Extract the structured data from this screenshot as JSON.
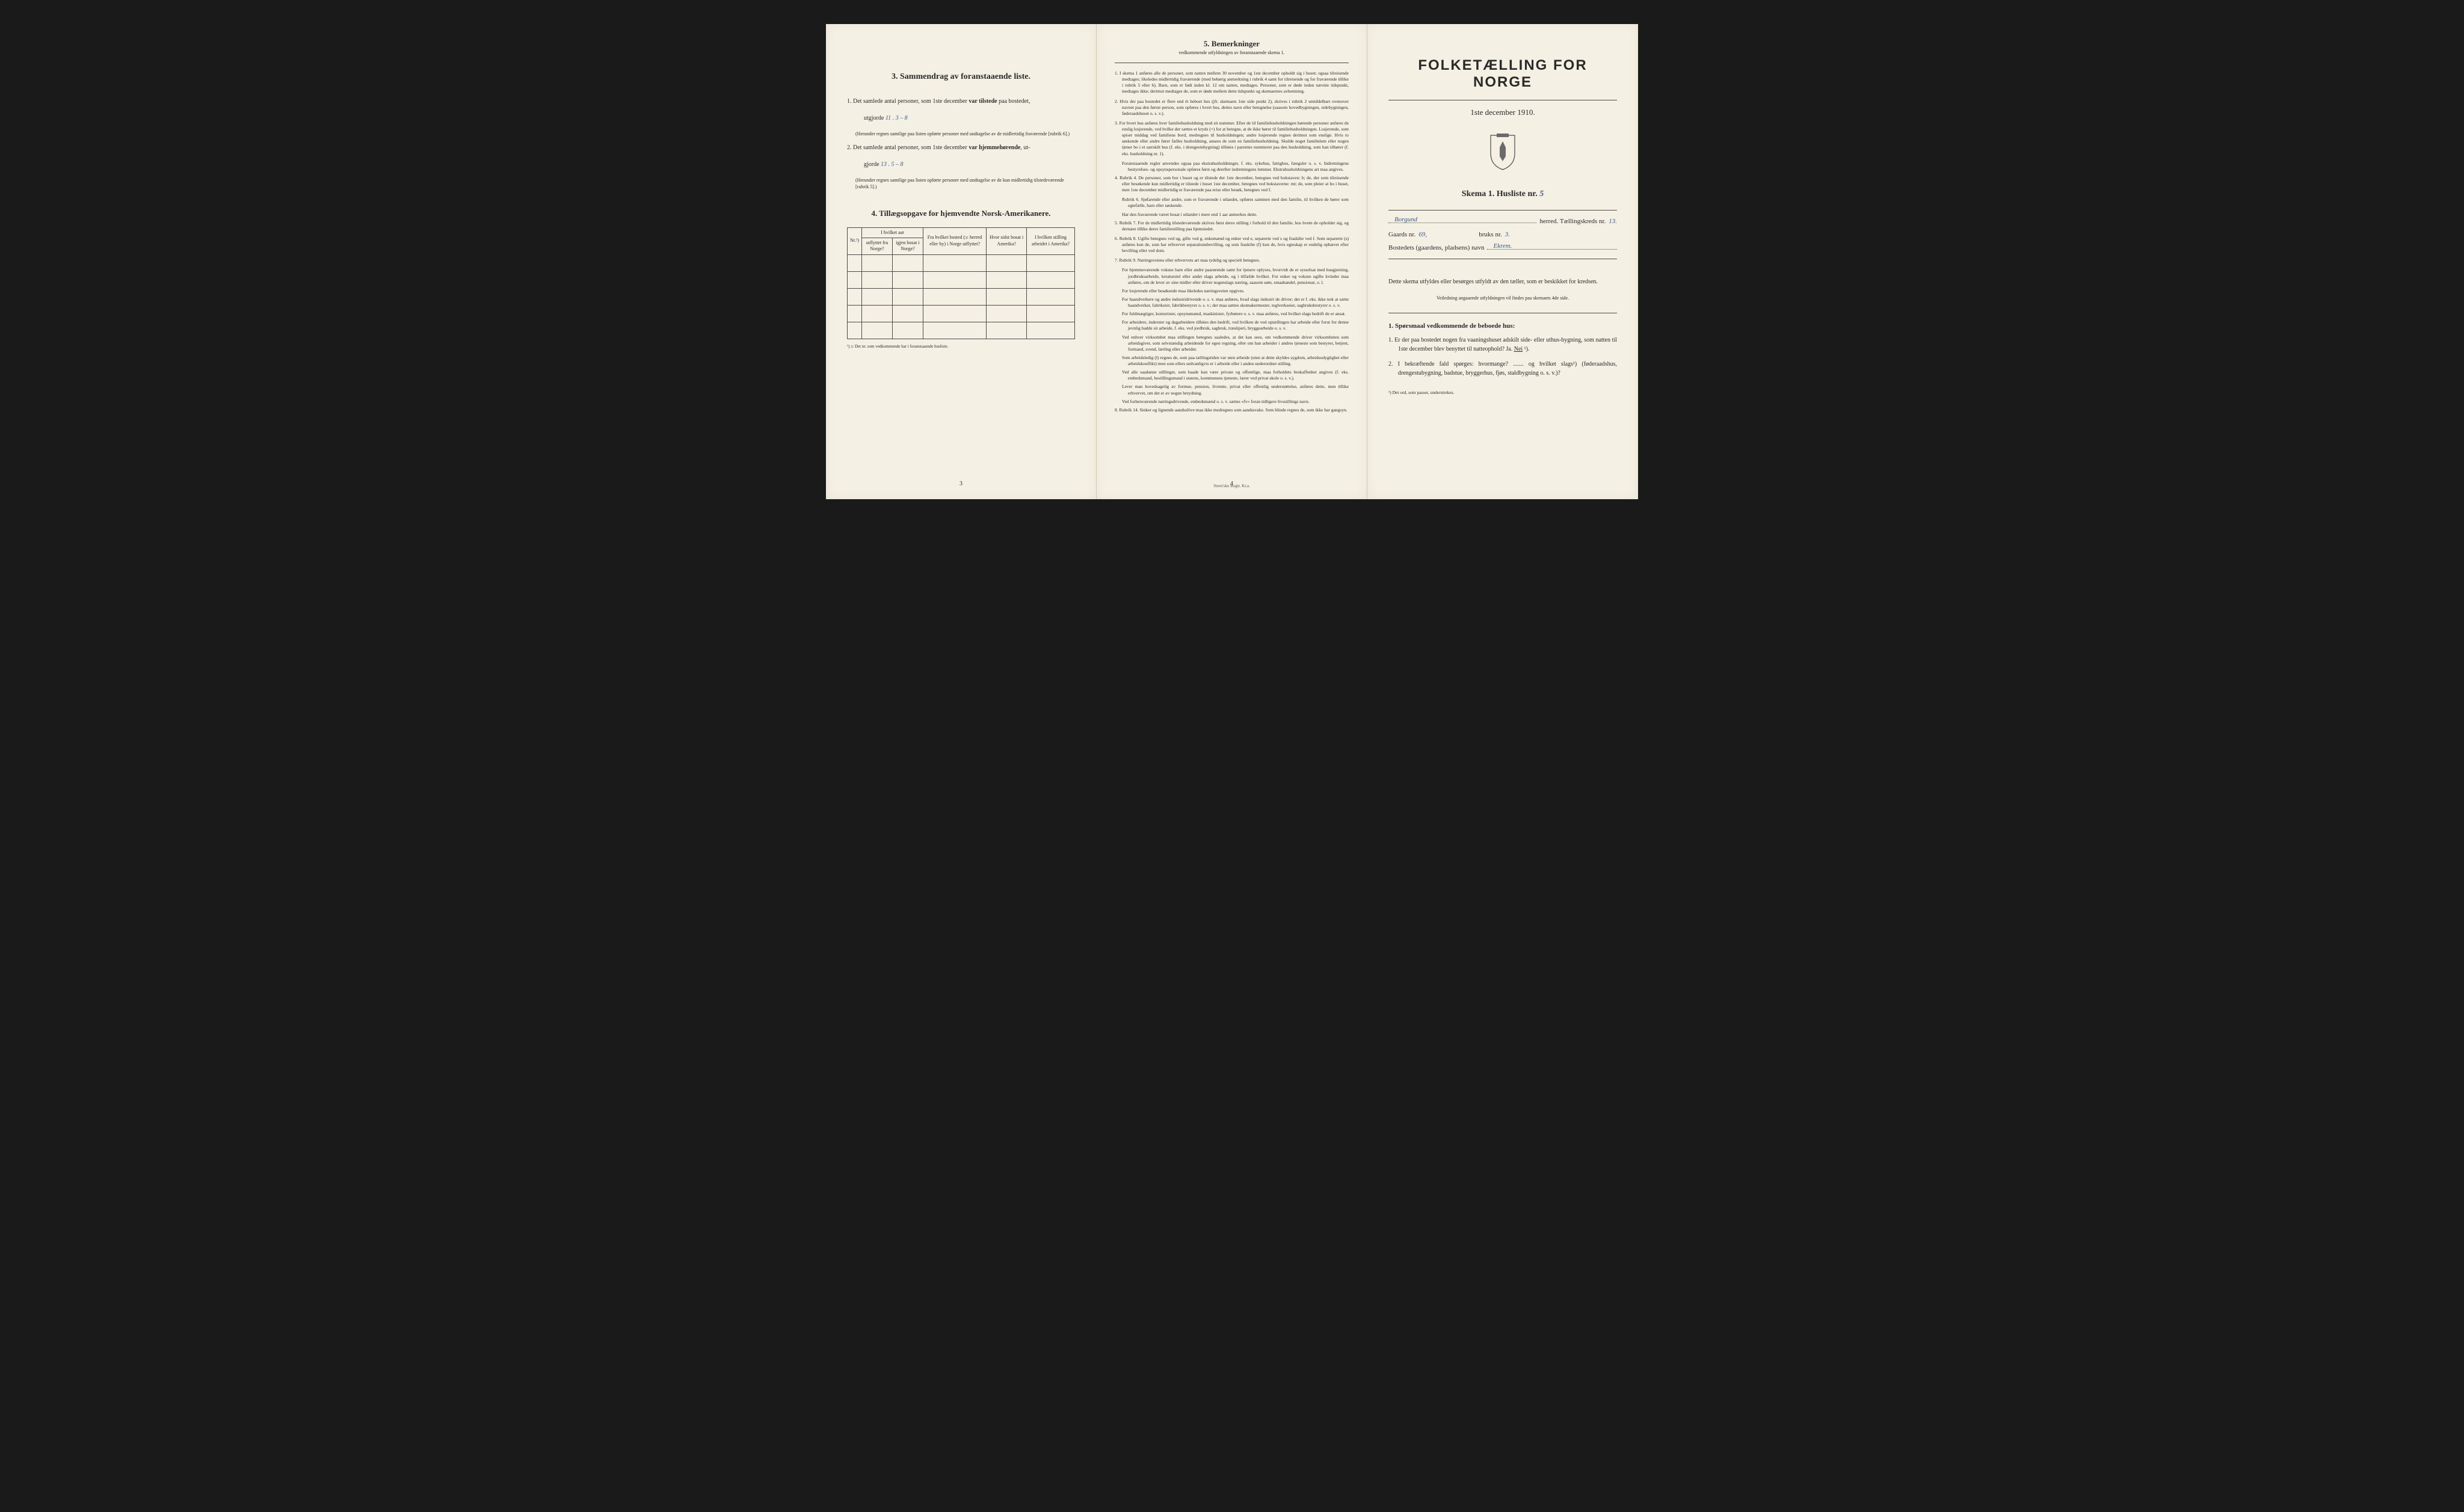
{
  "background_color": "#1a1a1a",
  "page_color": "#f5f0e4",
  "text_color": "#2a2a2a",
  "handwriting_color": "#3a5a8a",
  "left": {
    "section3_title": "3.  Sammendrag av foranstaaende liste.",
    "item1_prefix": "1.  Det samlede antal personer, som 1ste december ",
    "item1_bold": "var tilstede",
    "item1_suffix": " paa bostedet,",
    "item1_line2": "utgjorde ",
    "item1_hw": "11 .   3 – 8",
    "item1_note": "(Herunder regnes samtlige paa listen opførte personer med undtagelse av de midlertidig fraværende [rubrik 6].)",
    "item2_prefix": "2.  Det samlede antal personer, som 1ste december ",
    "item2_bold": "var hjemmehørende",
    "item2_suffix": ", ut-",
    "item2_line2": "gjorde ",
    "item2_hw": "13 .    5 – 8",
    "item2_note": "(Herunder regnes samtlige paa listen opførte personer med undtagelse av de kun midlertidig tilstedeværende [rubrik 5].)",
    "section4_title": "4.  Tillægsopgave for hjemvendte Norsk-Amerikanere.",
    "table": {
      "headers": {
        "col1": "Nr.¹)",
        "col2_top": "I hvilket aar",
        "col2a": "utflyttet fra Norge?",
        "col2b": "igjen bosat i Norge?",
        "col3": "Fra hvilket bosted (ɔ: herred eller by) i Norge utflyttet?",
        "col4": "Hvor sidst bosat i Amerika?",
        "col5": "I hvilken stilling arbeidet i Amerika?"
      },
      "empty_rows": 5
    },
    "table_footnote": "¹) ɔ: Det nr. som vedkommende har i foranstaaende husliste.",
    "page_num": "3"
  },
  "middle": {
    "title": "5.  Bemerkninger",
    "subtitle": "vedkommende utfyldningen av foranstaaende skema 1.",
    "items": [
      "1.  I skema 1 anføres alle de personer, som natten mellem 30 november og 1ste december opholdt sig i huset; ogsaa tilreisende medtages; likeledes midlertidig fraværende (med behørig anmerkning i rubrik 4 samt for tilreisende og for fraværende tillike i rubrik 5 eller 6). Barn, som er født inden kl. 12 om natten, medtages. Personer, som er døde inden nævnte tidspunkt, medtages ikke; derimot medtages de, som er døde mellem dette tidspunkt og skemaernes avhentning.",
      "2.  Hvis der paa bostedet er flere end ét beboet hus (jfr. skemaets 1ste side punkt 2), skrives i rubrik 2 umiddelbart ovenover navnet paa den første person, som opføres i hvert hus, dettes navn eller betegnelse (saasom hovedbygningen, sidebygningen, føderaadshuset o. s. v.).",
      "3.  For hvert hus anføres hver familiehusholdning med sit nummer. Efter de til familiehusholdningen hørende personer anføres de enslig losjerende, ved hvilke der sættes et kryds (×) for at betegne, at de ikke hører til familiehusholdningen. Losjerende, som spiser middag ved familiens bord, medregnes til husholdningen; andre losjerende regnes derimot som enslige. Hvis to søskende eller andre fører fælles husholdning, ansees de som en familiehusholdning. Skulde noget familielem eller nogen tjener bo i et særskilt hus (f. eks. i drengestubygning) tilføies i parentes nummeret paa den husholdning, som han tilhører (f. eks. husholdning nr. 1).",
      "   Foranstaaende regler anvendes ogsaa paa ekstrahusholdninger, f. eks. sykehus, fattighus, fængsler o. s. v. Indretningens bestyrelses- og opsynspersonale opføres først og derefter indretningens lemmer. Ekstrahusholdningens art maa angives.",
      "4.  Rubrik 4. De personer, som bor i huset og er tilstede der 1ste december, betegnes ved bokstaven: b; de, der som tilreisende eller besøkende kun midlertidig er tilstede i huset 1ste december, betegnes ved bokstaverne: mt; de, som pleier at bo i huset, men 1ste december midlertidig er fraværende paa reise eller besøk, betegnes ved f.",
      "   Rubrik 6. Sjøfarende eller andre, som er fraværende i utlandet, opføres sammen med den familie, til hvilken de hører som egtefælle, barn eller søskende.",
      "   Har den fraværende været bosat i utlandet i mere end 1 aar anmerkes dette.",
      "5.  Rubrik 7. For de midlertidig tilstedeværende skrives først deres stilling i forhold til den familie, hos hvem de opholder sig, og dernæst tillike deres familiestilling paa hjemstedet.",
      "6.  Rubrik 8. Ugifte betegnes ved ug, gifte ved g, enkemænd og enker ved e, separerte ved s og fraskilte ved f. Som separerte (s) anføres kun de, som har erhvervet separationsbevilling, og som fraskilte (f) kun de, hvis egteskap er endelig ophævet efter bevilling eller ved dom.",
      "7.  Rubrik 9. Næringsveiens eller erhvervets art maa tydelig og specielt betegnes.",
      "   For hjemmeværende voksne barn eller andre paarørende samt for tjenere oplyses, hvorvidt de er sysselsat med husgjerning, jordbruksarbeide, kreaturstel eller andet slags arbeide, og i tilfælde hvilket. For enker og voksne ugifte kvinder maa anføres, om de lever av sine midler eller driver nogenslags næring, saasom søm, smaahandel, pensionat, o. l.",
      "   For losjerende eller besøkende maa likeledes næringsveien opgives.",
      "   For haandverkere og andre industridrivende o. s. v. maa anføres, hvad slags industri de driver; det er f. eks. ikke nok at sætte haandverker, fabrikeier, fabrikbestyrer o. s. v.; der maa sættes skomakermester, teglverkseier, sagbruksbestyrer o. s. v.",
      "   For fuldmægtiger, kontorister, opsynsmænd, maskinister, fyrbøtere o. s. v. maa anføres, ved hvilket slags bedrift de er ansat.",
      "   For arbeidere, inderster og dagarbeidere tilføies den bedrift, ved hvilken de ved optællingen har arbeide eller forut for denne jevnlig hadde sit arbeide, f. eks. ved jordbruk, sagbruk, træsliperi, bryggearbeide o. s. v.",
      "   Ved enhver virksomhet maa stillingen betegnes saaledes, at det kan sees, om vedkommende driver virksomheten som arbeidsgiver, som selvstændig arbeidende for egen regning, eller om han arbeider i andres tjeneste som bestyrer, betjent, formand, svend, lærling eller arbeider.",
      "   Som arbeidsledig (l) regnes de, som paa tællingstiden var uten arbeide (uten at dette skyldes sygdom, arbeidsudygtighet eller arbeidskonflikt) men som ellers sedvanligvis er i arbeide eller i anden underordnet stilling.",
      "   Ved alle saadanne stillinger, som baade kan være private og offentlige, maa forholdets beskaffenhet angives (f. eks. embedsmand, bestillingsmand i statens, kommunens tjeneste, lærer ved privat skole o. s. v.).",
      "   Lever man hovedsagelig av formue, pension, livrente, privat eller offentlig understøttelse, anføres dette, men tillike erhvervet, om det er av nogen betydning.",
      "   Ved forhenværende næringsdrivende, embedsmænd o. s. v. sættes «fv» foran tidligere livsstillings navn.",
      "8.  Rubrik 14. Sinker og lignende aandsslöve maa ikke medregnes som aandssvake. Som blinde regnes de, som ikke har gangsyn."
    ],
    "page_num": "4",
    "printer": "Steen'ske Bogtr.  Kr.a."
  },
  "right": {
    "main_title": "FOLKETÆLLING FOR NORGE",
    "date": "1ste december 1910.",
    "skema": "Skema 1.  Husliste nr.",
    "skema_hw": "5",
    "herred_hw": "Borgund",
    "herred_label": "herred.  Tællingskreds nr.",
    "kreds_hw": "13.",
    "gaards_label": "Gaards nr.",
    "gaards_hw": "69,",
    "bruks_label": "bruks nr.",
    "bruks_hw": "3.",
    "bosted_label": "Bostedets (gaardens, pladsens) navn",
    "bosted_hw": "Ekrem.",
    "intro1": "Dette skema utfyldes eller besørges utfyldt av den tæller, som er beskikket for kredsen.",
    "intro2": "Veiledning angaaende utfyldningen vil findes paa skemaets 4de side.",
    "q_heading": "1. Spørsmaal vedkommende de beboede hus:",
    "q1": "1.  Er der paa bostedet nogen fra vaaningshuset adskilt side- eller uthus-bygning, som natten til 1ste december blev benyttet til natteophold?    Ja.   ",
    "q1_nei": "Nei",
    "q1_sup": " ¹).",
    "q2": "2.  I bekræftende fald spørges: hvormange? ....... og hvilket slags¹) (føderaadshus, drengestubygning, badstue, bryggerhus, fjøs, staldbygning o. s. v.)?",
    "footnote": "¹) Det ord, som passer, understrekes."
  }
}
